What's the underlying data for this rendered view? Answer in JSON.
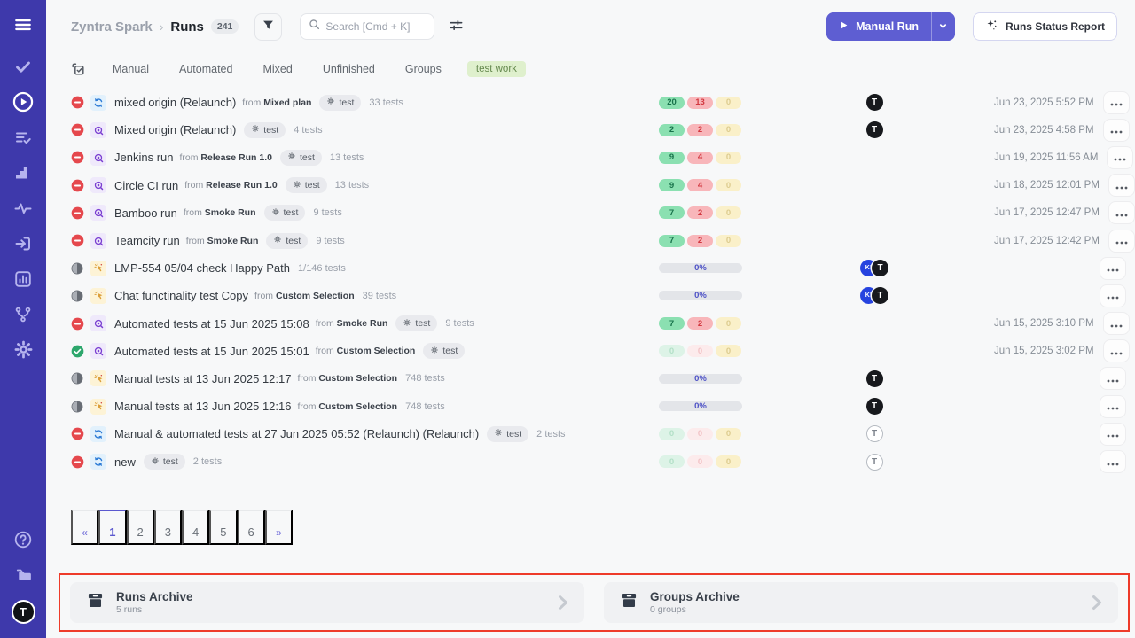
{
  "header": {
    "breadcrumb_root": "Zyntra Spark",
    "breadcrumb_separator": "›",
    "page_title": "Runs",
    "runs_count_badge": "241",
    "search_placeholder": "Search [Cmd + K]",
    "manual_run_button": "Manual Run",
    "runs_status_report_button": "Runs Status Report"
  },
  "tabs": {
    "items": [
      "Manual",
      "Automated",
      "Mixed",
      "Unfinished",
      "Groups"
    ],
    "filter_tag": "test work"
  },
  "sidebar": {
    "nav_items": [
      {
        "id": "tests",
        "icon": "check-icon",
        "active": false
      },
      {
        "id": "runs",
        "icon": "play-circle-icon",
        "active": true
      },
      {
        "id": "test-plans",
        "icon": "list-check-icon",
        "active": false
      },
      {
        "id": "milestones",
        "icon": "steps-icon",
        "active": false
      },
      {
        "id": "activity",
        "icon": "pulse-icon",
        "active": false
      },
      {
        "id": "inbox",
        "icon": "enter-box-icon",
        "active": false
      },
      {
        "id": "analytics",
        "icon": "bar-chart-icon",
        "active": false
      },
      {
        "id": "integrations",
        "icon": "fork-icon",
        "active": false
      },
      {
        "id": "settings",
        "icon": "gear-icon",
        "active": false
      }
    ],
    "bottom_items": [
      {
        "id": "help",
        "icon": "help-icon"
      },
      {
        "id": "projects",
        "icon": "folders-icon"
      }
    ],
    "user_avatar_label": "T"
  },
  "runs": {
    "config_badge_label": "test",
    "from_label": "from",
    "rows": [
      {
        "status": "stopped",
        "type": "mixed",
        "title": "mixed origin (Relaunch)",
        "from": "Mixed plan",
        "config": true,
        "tests": "33 tests",
        "results": {
          "passed": "20",
          "failed": "13",
          "blocked": "0",
          "faint": false
        },
        "avatars": [
          "t-dark"
        ],
        "date": "Jun 23, 2025 5:52 PM"
      },
      {
        "status": "stopped",
        "type": "automated",
        "title": "Mixed origin (Relaunch)",
        "from": "",
        "config": true,
        "tests": "4 tests",
        "results": {
          "passed": "2",
          "failed": "2",
          "blocked": "0",
          "faint": false
        },
        "avatars": [
          "t-dark"
        ],
        "date": "Jun 23, 2025 4:58 PM"
      },
      {
        "status": "stopped",
        "type": "automated",
        "title": "Jenkins run",
        "from": "Release Run 1.0",
        "config": true,
        "tests": "13 tests",
        "results": {
          "passed": "9",
          "failed": "4",
          "blocked": "0",
          "faint": false
        },
        "avatars": [],
        "date": "Jun 19, 2025 11:56 AM"
      },
      {
        "status": "stopped",
        "type": "automated",
        "title": "Circle CI run",
        "from": "Release Run 1.0",
        "config": true,
        "tests": "13 tests",
        "results": {
          "passed": "9",
          "failed": "4",
          "blocked": "0",
          "faint": false
        },
        "avatars": [],
        "date": "Jun 18, 2025 12:01 PM"
      },
      {
        "status": "stopped",
        "type": "automated",
        "title": "Bamboo run",
        "from": "Smoke Run",
        "config": true,
        "tests": "9 tests",
        "results": {
          "passed": "7",
          "failed": "2",
          "blocked": "0",
          "faint": false
        },
        "avatars": [],
        "date": "Jun 17, 2025 12:47 PM"
      },
      {
        "status": "stopped",
        "type": "automated",
        "title": "Teamcity run",
        "from": "Smoke Run",
        "config": true,
        "tests": "9 tests",
        "results": {
          "passed": "7",
          "failed": "2",
          "blocked": "0",
          "faint": false
        },
        "avatars": [],
        "date": "Jun 17, 2025 12:42 PM"
      },
      {
        "status": "in-progress",
        "type": "manual",
        "title": "LMP-554 05/04 check Happy Path",
        "from": "",
        "config": false,
        "tests": "1/146 tests",
        "progress": "0%",
        "avatars": [
          "ki",
          "t-dark"
        ],
        "date": ""
      },
      {
        "status": "in-progress",
        "type": "manual",
        "title": "Chat functinality test Copy",
        "from": "Custom Selection",
        "config": false,
        "tests": "39 tests",
        "progress": "0%",
        "avatars": [
          "ki",
          "t-dark"
        ],
        "date": ""
      },
      {
        "status": "stopped",
        "type": "automated",
        "title": "Automated tests at 15 Jun 2025 15:08",
        "from": "Smoke Run",
        "config": true,
        "tests": "9 tests",
        "results": {
          "passed": "7",
          "failed": "2",
          "blocked": "0",
          "faint": false
        },
        "avatars": [],
        "date": "Jun 15, 2025 3:10 PM"
      },
      {
        "status": "passed",
        "type": "automated",
        "title": "Automated tests at 15 Jun 2025 15:01",
        "from": "Custom Selection",
        "config": true,
        "tests": "",
        "results": {
          "passed": "0",
          "failed": "0",
          "blocked": "0",
          "faint": true
        },
        "avatars": [],
        "date": "Jun 15, 2025 3:02 PM"
      },
      {
        "status": "in-progress",
        "type": "manual",
        "title": "Manual tests at 13 Jun 2025 12:17",
        "from": "Custom Selection",
        "config": false,
        "tests": "748 tests",
        "progress": "0%",
        "avatars": [
          "t-dark"
        ],
        "date": ""
      },
      {
        "status": "in-progress",
        "type": "manual",
        "title": "Manual tests at 13 Jun 2025 12:16",
        "from": "Custom Selection",
        "config": false,
        "tests": "748 tests",
        "progress": "0%",
        "avatars": [
          "t-dark"
        ],
        "date": ""
      },
      {
        "status": "stopped",
        "type": "mixed",
        "title": "Manual & automated tests at 27 Jun 2025 05:52 (Relaunch) (Relaunch)",
        "from": "",
        "config": true,
        "tests": "2 tests",
        "results": {
          "passed": "0",
          "failed": "0",
          "blocked": "0",
          "faint": true
        },
        "avatars": [
          "t-light"
        ],
        "date": ""
      },
      {
        "status": "stopped",
        "type": "mixed",
        "title": "new",
        "from": "",
        "config": true,
        "tests": "2 tests",
        "results": {
          "passed": "0",
          "failed": "0",
          "blocked": "0",
          "faint": true
        },
        "avatars": [
          "t-light"
        ],
        "date": ""
      }
    ]
  },
  "avatars_legend": {
    "t-dark": "T",
    "ki": "KI",
    "t-light": "T"
  },
  "pagination": {
    "prev": "«",
    "pages": [
      "1",
      "2",
      "3",
      "4",
      "5",
      "6"
    ],
    "active_page": "1",
    "next": "»"
  },
  "archive": {
    "cards": [
      {
        "title": "Runs Archive",
        "subtitle": "5 runs"
      },
      {
        "title": "Groups Archive",
        "subtitle": "0 groups"
      }
    ]
  },
  "icons": {
    "header": [
      "filter-icon",
      "search-icon",
      "adjustments-icon",
      "play-icon",
      "chevron-down-icon",
      "sparkles-icon"
    ],
    "rows": [
      "stopped-status-icon",
      "passed-status-icon",
      "in-progress-status-icon",
      "mixed-run-icon",
      "automated-run-icon",
      "manual-run-icon",
      "gear-icon",
      "ellipsis-icon"
    ],
    "archive": [
      "archive-box-icon",
      "chevron-right-icon"
    ]
  },
  "colors": {
    "sidebar": "#3e39ab",
    "primary_button": "#5e5ed2",
    "highlight_border": "#ee3b2a",
    "status_stopped": "#e5484d",
    "status_passed": "#2da76c",
    "badge_passed_bg": "#8be0b1",
    "badge_failed_bg": "#f8b6ba",
    "badge_blocked_bg": "#faf0c9",
    "filter_tag_bg": "#dff0cd"
  }
}
